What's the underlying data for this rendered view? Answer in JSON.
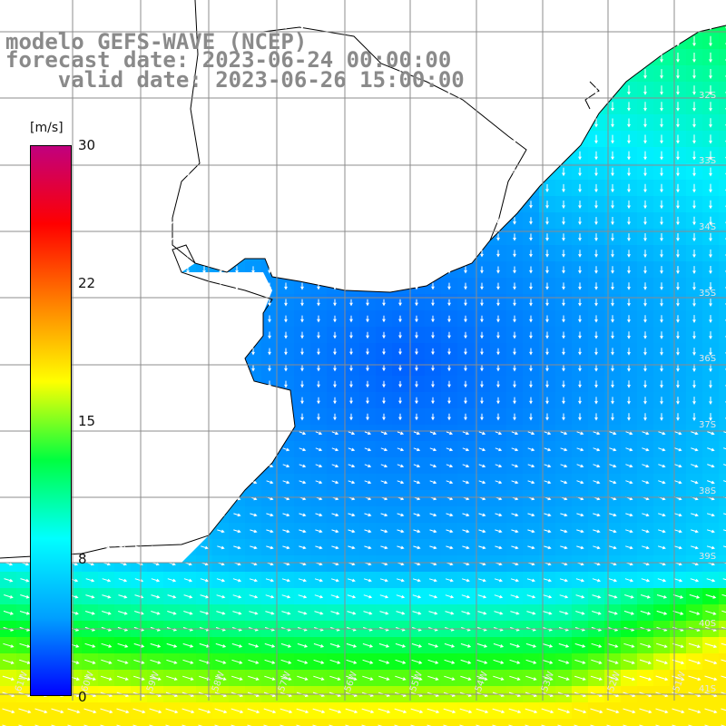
{
  "header": {
    "line1": "modelo GEFS-WAVE (NCEP)",
    "line2": "forecast date: 2023-06-24 00:00:00",
    "line3": "    valid date: 2023-06-26 15:00:00"
  },
  "colorbar": {
    "unit": "[m/s]",
    "ticks": [
      {
        "label": "30",
        "value": 30
      },
      {
        "label": "22",
        "value": 22
      },
      {
        "label": "15",
        "value": 15
      },
      {
        "label": "8",
        "value": 8
      },
      {
        "label": "0",
        "value": 0
      }
    ],
    "colors": [
      "#0000ff",
      "#00a0ff",
      "#00ffff",
      "#00ff40",
      "#ffff00",
      "#ff8000",
      "#ff0000",
      "#c00080"
    ]
  },
  "axes": {
    "lat_labels": [
      "32S",
      "33S",
      "34S",
      "35S",
      "36S",
      "37S",
      "38S",
      "39S",
      "40S",
      "41S"
    ],
    "lon_labels": [
      "61W",
      "60W",
      "59W",
      "58W",
      "57W",
      "56W",
      "55W",
      "54W",
      "53W",
      "52W",
      "51W"
    ]
  },
  "map": {
    "land_color": "#ffffff",
    "grid_color": "#8c8c8c",
    "coast_color": "#000000",
    "arrow_color": "#ffffff"
  }
}
